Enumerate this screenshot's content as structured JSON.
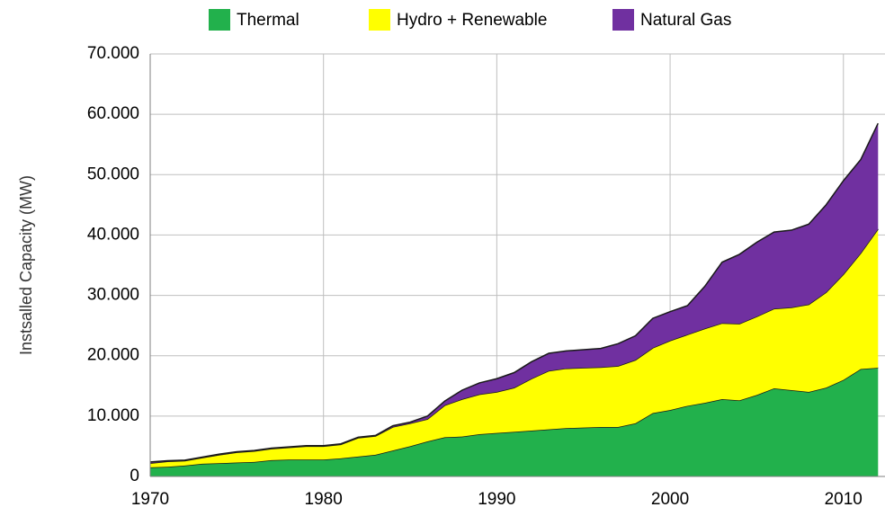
{
  "chart_data": {
    "type": "stacked_area",
    "y_label": "Instsalled Capacity (MW)",
    "legend": "top",
    "grid": true,
    "x": [
      1970,
      1971,
      1972,
      1973,
      1974,
      1975,
      1976,
      1977,
      1978,
      1979,
      1980,
      1981,
      1982,
      1983,
      1984,
      1985,
      1986,
      1987,
      1988,
      1989,
      1990,
      1991,
      1992,
      1993,
      1994,
      1995,
      1996,
      1997,
      1998,
      1999,
      2000,
      2001,
      2002,
      2003,
      2004,
      2005,
      2006,
      2007,
      2008,
      2009,
      2010,
      2011,
      2012
    ],
    "xlim": [
      1970,
      2012.4
    ],
    "xticks": [
      1970,
      1980,
      1990,
      2000,
      2010
    ],
    "ylim": [
      0,
      70000
    ],
    "yticks": [
      0,
      {
        "value": 10000,
        "label": "10.000"
      },
      {
        "value": 20000,
        "label": "20.000"
      },
      {
        "value": 30000,
        "label": "30.000"
      },
      {
        "value": 40000,
        "label": "40.000"
      },
      {
        "value": 50000,
        "label": "50.000"
      },
      {
        "value": 60000,
        "label": "60.000"
      },
      {
        "value": 70000,
        "label": "70.000"
      }
    ],
    "series": [
      {
        "name": "Thermal",
        "color": "#22b14c",
        "values": [
          1500,
          1600,
          1800,
          2100,
          2200,
          2300,
          2400,
          2700,
          2800,
          2800,
          2800,
          3000,
          3300,
          3600,
          4300,
          5000,
          5800,
          6500,
          6600,
          7000,
          7200,
          7400,
          7600,
          7800,
          8000,
          8100,
          8200,
          8200,
          8800,
          10500,
          11000,
          11700,
          12200,
          12800,
          12600,
          13500,
          14600,
          14300,
          14000,
          14700,
          16000,
          17800,
          18000
        ]
      },
      {
        "name": "Hydro + Renewable",
        "color": "#ffff00",
        "values": [
          700,
          900,
          800,
          1000,
          1400,
          1700,
          1800,
          1900,
          2000,
          2200,
          2200,
          2300,
          3100,
          3100,
          3900,
          3800,
          3700,
          5300,
          6200,
          6600,
          6800,
          7300,
          8600,
          9700,
          9900,
          9900,
          9900,
          10100,
          10500,
          10800,
          11500,
          11800,
          12300,
          12600,
          12700,
          13000,
          13200,
          13700,
          14500,
          15800,
          17500,
          19200,
          23000
        ]
      },
      {
        "name": "Natural Gas",
        "color": "#7030a0",
        "values": [
          200,
          100,
          100,
          100,
          100,
          100,
          100,
          100,
          100,
          100,
          100,
          100,
          100,
          100,
          200,
          200,
          500,
          700,
          1500,
          1900,
          2200,
          2500,
          2800,
          2900,
          2900,
          3000,
          3100,
          3700,
          4000,
          4900,
          4800,
          4800,
          7000,
          10100,
          11500,
          12300,
          12700,
          12800,
          13300,
          14500,
          15500,
          15500,
          17500
        ]
      }
    ]
  }
}
